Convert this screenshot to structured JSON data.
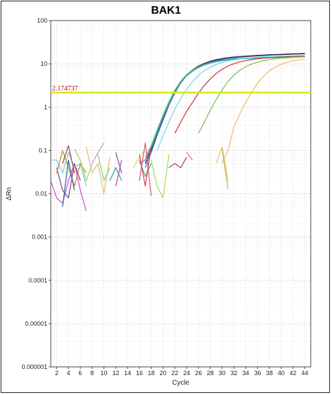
{
  "chart_data": {
    "type": "line",
    "title": "BAK1",
    "xlabel": "Cycle",
    "ylabel": "ΔRn",
    "xlim": [
      1,
      45
    ],
    "ylim": [
      1e-06,
      100
    ],
    "yscale": "log",
    "x_ticks": [
      "2",
      "4",
      "6",
      "8",
      "10",
      "12",
      "14",
      "16",
      "18",
      "20",
      "22",
      "24",
      "26",
      "28",
      "30",
      "32",
      "34",
      "36",
      "38",
      "40",
      "42",
      "44"
    ],
    "y_ticks": [
      "100",
      "10",
      "1",
      "0.1",
      "0.01",
      "0.001",
      "0.0001",
      "0.00001",
      "0.000001"
    ],
    "grid": true,
    "threshold": {
      "label": "2.174737",
      "value": 2.174737,
      "color": "#d4e81a"
    },
    "series": [
      {
        "color": "#6b6bd6",
        "x": [
          17,
          18,
          19,
          20,
          21,
          22,
          23,
          24,
          25,
          26,
          27,
          28,
          29,
          30,
          31,
          32,
          33,
          34,
          35,
          36,
          37,
          38,
          39,
          40,
          41,
          42,
          43,
          44
        ],
        "y": [
          0.04,
          0.09,
          0.22,
          0.5,
          1.1,
          2.1,
          3.6,
          5.4,
          7.2,
          8.9,
          10.3,
          11.6,
          12.6,
          13.4,
          14.0,
          14.5,
          14.9,
          15.2,
          15.5,
          15.8,
          16.0,
          16.3,
          16.5,
          16.7,
          16.9,
          17.1,
          17.3,
          17.5
        ]
      },
      {
        "color": "#222222",
        "x": [
          17,
          18,
          19,
          20,
          21,
          22,
          23,
          24,
          25,
          26,
          27,
          28,
          29,
          30,
          31,
          32,
          33,
          34,
          35,
          36,
          37,
          38,
          39,
          40,
          41,
          42,
          43,
          44
        ],
        "y": [
          0.05,
          0.1,
          0.24,
          0.55,
          1.2,
          2.3,
          3.8,
          5.6,
          7.3,
          8.9,
          10.2,
          11.3,
          12.2,
          12.9,
          13.5,
          14.0,
          14.4,
          14.8,
          15.1,
          15.4,
          15.7,
          15.9,
          16.2,
          16.4,
          16.6,
          16.8,
          17.0,
          17.2
        ]
      },
      {
        "color": "#2aa88c",
        "x": [
          17,
          18,
          19,
          20,
          21,
          22,
          23,
          24,
          25,
          26,
          27,
          28,
          29,
          30,
          31,
          32,
          33,
          34,
          35,
          36,
          37,
          38,
          39,
          40,
          41,
          42,
          43,
          44
        ],
        "y": [
          0.06,
          0.12,
          0.28,
          0.62,
          1.3,
          2.4,
          3.9,
          5.6,
          7.1,
          8.6,
          9.8,
          10.8,
          11.6,
          12.2,
          12.7,
          13.1,
          13.4,
          13.7,
          13.9,
          14.1,
          14.3,
          14.4,
          14.5,
          14.6,
          14.7,
          14.8,
          14.9,
          15.0
        ]
      },
      {
        "color": "#5fcf5f",
        "x": [
          17,
          18,
          19,
          20,
          21,
          22,
          23,
          24,
          25,
          26,
          27,
          28,
          29,
          30,
          31,
          32,
          33,
          34,
          35,
          36,
          37,
          38,
          39,
          40,
          41,
          42,
          43,
          44
        ],
        "y": [
          0.07,
          0.13,
          0.3,
          0.66,
          1.35,
          2.5,
          4.0,
          5.7,
          7.2,
          8.6,
          9.7,
          10.6,
          11.3,
          11.9,
          12.4,
          12.8,
          13.1,
          13.4,
          13.6,
          13.8,
          13.9,
          14.0,
          14.1,
          14.2,
          14.3,
          14.4,
          14.5,
          14.6
        ]
      },
      {
        "color": "#3d8fd6",
        "x": [
          16,
          17,
          18,
          19,
          20,
          21,
          22,
          23,
          24,
          25,
          26,
          27,
          28,
          29,
          30,
          31,
          32,
          33,
          34,
          35,
          36,
          37,
          38,
          39,
          40,
          41,
          42,
          43,
          44
        ],
        "y": [
          0.05,
          0.06,
          0.11,
          0.25,
          0.58,
          1.2,
          2.2,
          3.7,
          5.3,
          6.8,
          8.2,
          9.4,
          10.4,
          11.2,
          11.8,
          12.3,
          12.7,
          13.0,
          13.3,
          13.5,
          13.7,
          13.9,
          14.0,
          14.1,
          14.2,
          14.3,
          14.4,
          14.5,
          14.6
        ]
      },
      {
        "color": "#6ee0e0",
        "x": [
          19,
          20,
          21,
          22,
          23,
          24,
          25,
          26,
          27,
          28,
          29,
          30,
          31,
          32,
          33,
          34,
          35,
          36,
          37,
          38,
          39,
          40,
          41,
          42,
          43,
          44
        ],
        "y": [
          0.1,
          0.22,
          0.45,
          0.9,
          1.6,
          2.6,
          3.9,
          5.4,
          7.0,
          8.4,
          9.7,
          10.8,
          11.7,
          12.4,
          13.0,
          13.5,
          13.9,
          14.2,
          14.5,
          14.7,
          14.9,
          15.1,
          15.3,
          15.4,
          15.5,
          15.6
        ]
      },
      {
        "color": "#c94040",
        "x": [
          22,
          23,
          24,
          25,
          26,
          27,
          28,
          29,
          30,
          31,
          32,
          33,
          34,
          35,
          36,
          37,
          38,
          39,
          40,
          41,
          42,
          43,
          44
        ],
        "y": [
          0.25,
          0.45,
          0.8,
          1.3,
          2.1,
          3.2,
          4.5,
          6.0,
          7.5,
          8.9,
          10.1,
          11.1,
          11.9,
          12.6,
          13.1,
          13.5,
          13.8,
          14.1,
          14.3,
          14.5,
          14.7,
          14.9,
          15.0
        ]
      },
      {
        "color": "#7fc44a",
        "x": [
          26,
          27,
          28,
          29,
          30,
          31,
          32,
          33,
          34,
          35,
          36,
          37,
          38,
          39,
          40,
          41,
          42,
          43,
          44
        ],
        "y": [
          0.25,
          0.45,
          0.85,
          1.5,
          2.5,
          3.9,
          5.5,
          7.1,
          8.6,
          9.9,
          11.0,
          11.9,
          12.6,
          13.1,
          13.5,
          13.8,
          14.1,
          14.3,
          14.5
        ]
      },
      {
        "color": "#f0c060",
        "x": [
          30,
          31,
          32,
          33,
          34,
          35,
          36,
          37,
          38,
          39,
          40,
          41,
          42,
          43,
          44
        ],
        "y": [
          0.05,
          0.1,
          0.35,
          0.7,
          1.3,
          2.2,
          3.6,
          5.2,
          6.9,
          8.4,
          9.8,
          10.9,
          11.8,
          12.4,
          12.8
        ]
      },
      {
        "color": "#d64fd6",
        "x": [
          1,
          2,
          3,
          4,
          5,
          6,
          7
        ],
        "y": [
          0.02,
          0.008,
          0.006,
          0.02,
          0.05,
          0.012,
          0.004
        ]
      },
      {
        "color": "#8a4a8a",
        "x": [
          2,
          3,
          4,
          5,
          6
        ],
        "y": [
          0.04,
          0.012,
          0.008,
          0.05,
          0.02
        ]
      },
      {
        "color": "#6ed6d6",
        "x": [
          1,
          2,
          3,
          4,
          5,
          6,
          7
        ],
        "y": [
          0.06,
          0.06,
          0.03,
          0.09,
          0.04,
          0.05,
          0.015
        ]
      },
      {
        "color": "#c89030",
        "x": [
          2,
          3,
          4,
          5,
          6,
          7
        ],
        "y": [
          0.03,
          0.1,
          0.04,
          0.015,
          0.05,
          0.03
        ]
      },
      {
        "color": "#2a6aa8",
        "x": [
          3,
          4,
          5
        ],
        "y": [
          0.005,
          0.06,
          0.012
        ]
      },
      {
        "color": "#b04a4a",
        "x": [
          3,
          4,
          5
        ],
        "y": [
          0.05,
          0.13,
          0.03
        ]
      },
      {
        "color": "#a8d46a",
        "x": [
          5,
          6,
          7,
          8
        ],
        "y": [
          0.11,
          0.06,
          0.02,
          0.05
        ]
      },
      {
        "color": "#d690d6",
        "x": [
          8,
          9,
          10
        ],
        "y": [
          0.05,
          0.09,
          0.15
        ]
      },
      {
        "color": "#e0c07a",
        "x": [
          7,
          8,
          9,
          10,
          11
        ],
        "y": [
          0.12,
          0.03,
          0.05,
          0.01,
          0.07
        ]
      },
      {
        "color": "#7ad47a",
        "x": [
          9,
          10,
          11
        ],
        "y": [
          0.08,
          0.02,
          0.04
        ]
      },
      {
        "color": "#7a5ab0",
        "x": [
          12,
          13
        ],
        "y": [
          0.09,
          0.03
        ]
      },
      {
        "color": "#3aa0a0",
        "x": [
          11,
          12,
          13
        ],
        "y": [
          0.02,
          0.04,
          0.02
        ]
      },
      {
        "color": "#c04aa0",
        "x": [
          12,
          13
        ],
        "y": [
          0.015,
          0.06
        ]
      },
      {
        "color": "#f0d070",
        "x": [
          15,
          16,
          17
        ],
        "y": [
          0.04,
          0.07,
          0.1
        ]
      },
      {
        "color": "#d06080",
        "x": [
          16,
          17,
          18
        ],
        "y": [
          0.02,
          0.15,
          0.009
        ]
      },
      {
        "color": "#40b080",
        "x": [
          16,
          17,
          18
        ],
        "y": [
          0.06,
          0.025,
          0.05
        ]
      },
      {
        "color": "#e04060",
        "x": [
          16,
          17,
          18
        ],
        "y": [
          0.08,
          0.015,
          0.12
        ]
      },
      {
        "color": "#a0e060",
        "x": [
          18,
          19,
          20,
          21
        ],
        "y": [
          0.06,
          0.015,
          0.008,
          0.08
        ]
      },
      {
        "color": "#c04040",
        "x": [
          21,
          22,
          23,
          24
        ],
        "y": [
          0.04,
          0.05,
          0.04,
          0.07
        ]
      },
      {
        "color": "#d08080",
        "x": [
          24,
          25
        ],
        "y": [
          0.09,
          0.06
        ]
      },
      {
        "color": "#e0d060",
        "x": [
          29,
          30,
          31
        ],
        "y": [
          0.05,
          0.12,
          0.02
        ]
      },
      {
        "color": "#c8b050",
        "x": [
          30,
          31
        ],
        "y": [
          0.11,
          0.013
        ]
      }
    ]
  }
}
